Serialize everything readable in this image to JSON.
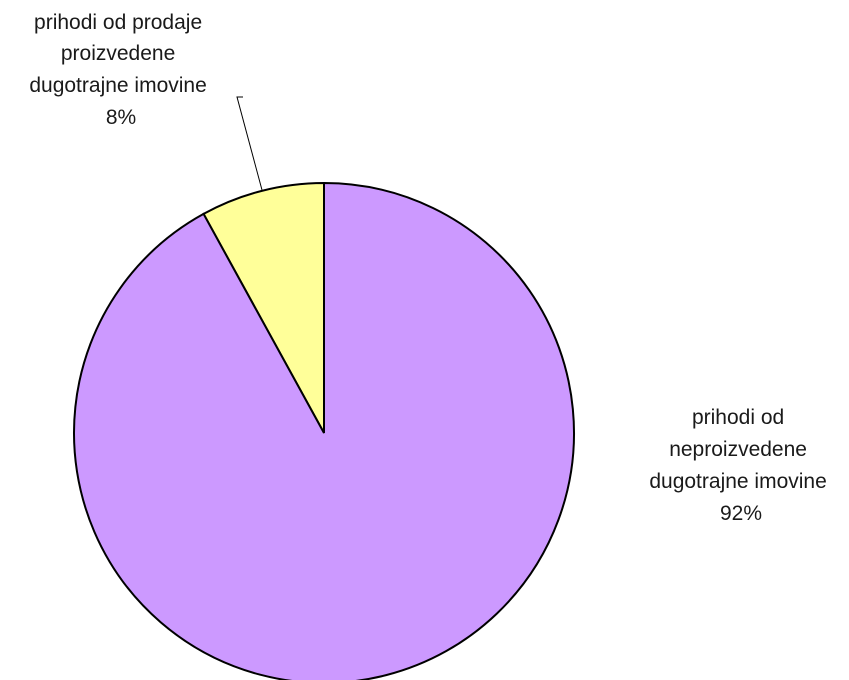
{
  "chart_data": {
    "type": "pie",
    "slices": [
      {
        "label_lines": [
          "prihodi od prodaje",
          "proizvedene",
          "dugotrajne imovine"
        ],
        "value": 8,
        "percent_label": "8%",
        "color": "#ffff99"
      },
      {
        "label_lines": [
          "prihodi od",
          "neproizvedene",
          "dugotrajne imovine"
        ],
        "value": 92,
        "percent_label": "92%",
        "color": "#cc99ff"
      }
    ]
  }
}
